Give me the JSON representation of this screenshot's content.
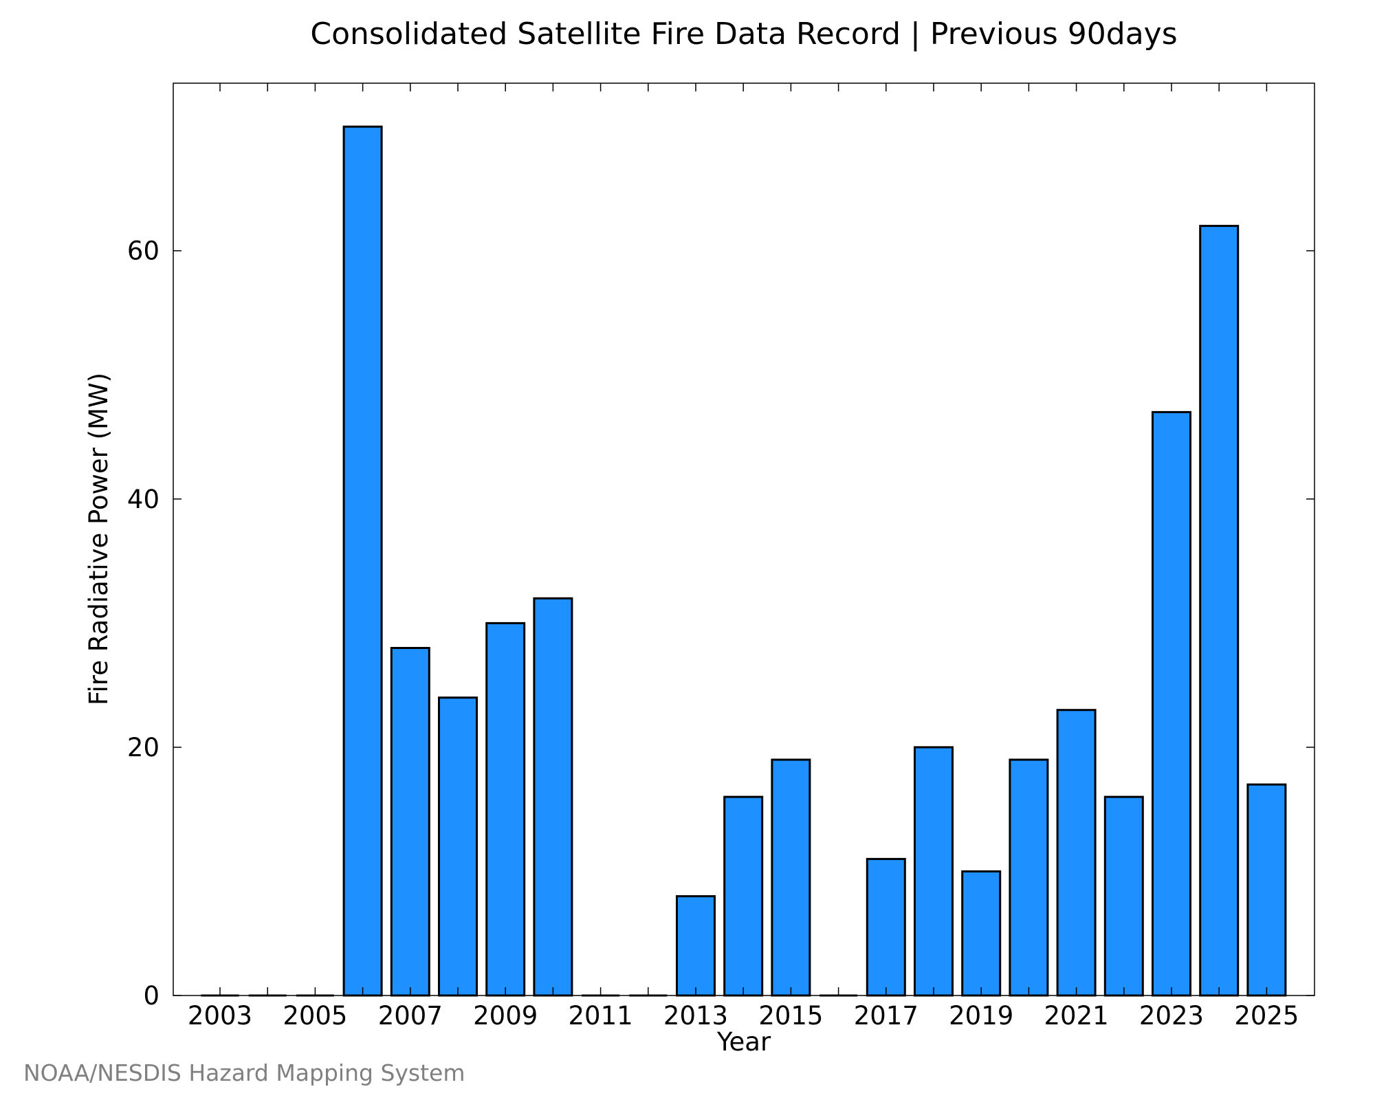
{
  "chart_data": {
    "type": "bar",
    "title": "Consolidated Satellite Fire Data Record | Previous 90days",
    "xlabel": "Year",
    "ylabel": "Fire Radiative Power (MW)",
    "categories": [
      "2003",
      "2004",
      "2005",
      "2006",
      "2007",
      "2008",
      "2009",
      "2010",
      "2011",
      "2012",
      "2013",
      "2014",
      "2015",
      "2016",
      "2017",
      "2018",
      "2019",
      "2020",
      "2021",
      "2022",
      "2023",
      "2024",
      "2025"
    ],
    "values": [
      0,
      0,
      0,
      70,
      28,
      24,
      30,
      32,
      0,
      0,
      8,
      16,
      19,
      0,
      11,
      20,
      10,
      19,
      23,
      16,
      47,
      62,
      17
    ],
    "x_tick_labels": [
      "2003",
      "2005",
      "2007",
      "2009",
      "2011",
      "2013",
      "2015",
      "2017",
      "2019",
      "2021",
      "2023",
      "2025"
    ],
    "y_ticks": [
      0,
      20,
      40,
      60
    ],
    "ylim": [
      0,
      73.5
    ],
    "bar_color": "#1e90ff",
    "edge_color": "#000000",
    "grid": false,
    "legend": false
  },
  "credit": "NOAA/NESDIS Hazard Mapping System"
}
